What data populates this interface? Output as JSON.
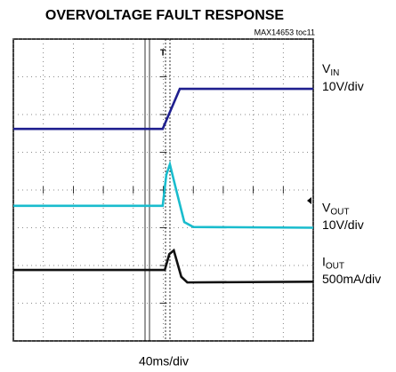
{
  "chart_data": {
    "type": "scope",
    "title": "OVERVOLTAGE FAULT RESPONSE",
    "subtitle": "MAX14653 toc11",
    "xlabel": "40ms/div",
    "xlim": [
      0,
      10
    ],
    "ylim": [
      0,
      8
    ],
    "xticks": [
      0,
      1,
      2,
      3,
      4,
      5,
      6,
      7,
      8,
      9,
      10
    ],
    "yticks": [
      0,
      1,
      2,
      3,
      4,
      5,
      6,
      7,
      8
    ],
    "grid": true,
    "trigger": "T",
    "series": [
      {
        "name": "VIN",
        "scale": "10V/div",
        "color": "#1f1f8f",
        "x": [
          0,
          4.98,
          5.55,
          10
        ],
        "values": [
          5.62,
          5.62,
          6.68,
          6.68
        ]
      },
      {
        "name": "VOUT",
        "scale": "10V/div",
        "color": "#19bccd",
        "x": [
          0,
          4.98,
          5.1,
          5.22,
          5.4,
          5.7,
          6.0,
          10
        ],
        "values": [
          3.58,
          3.58,
          4.4,
          4.68,
          4.1,
          3.15,
          3.02,
          3.0
        ]
      },
      {
        "name": "IOUT",
        "scale": "500mA/div",
        "color": "#111111",
        "x": [
          0,
          5.05,
          5.2,
          5.35,
          5.6,
          5.8,
          10
        ],
        "values": [
          1.88,
          1.88,
          2.3,
          2.4,
          1.7,
          1.55,
          1.57
        ]
      }
    ]
  }
}
